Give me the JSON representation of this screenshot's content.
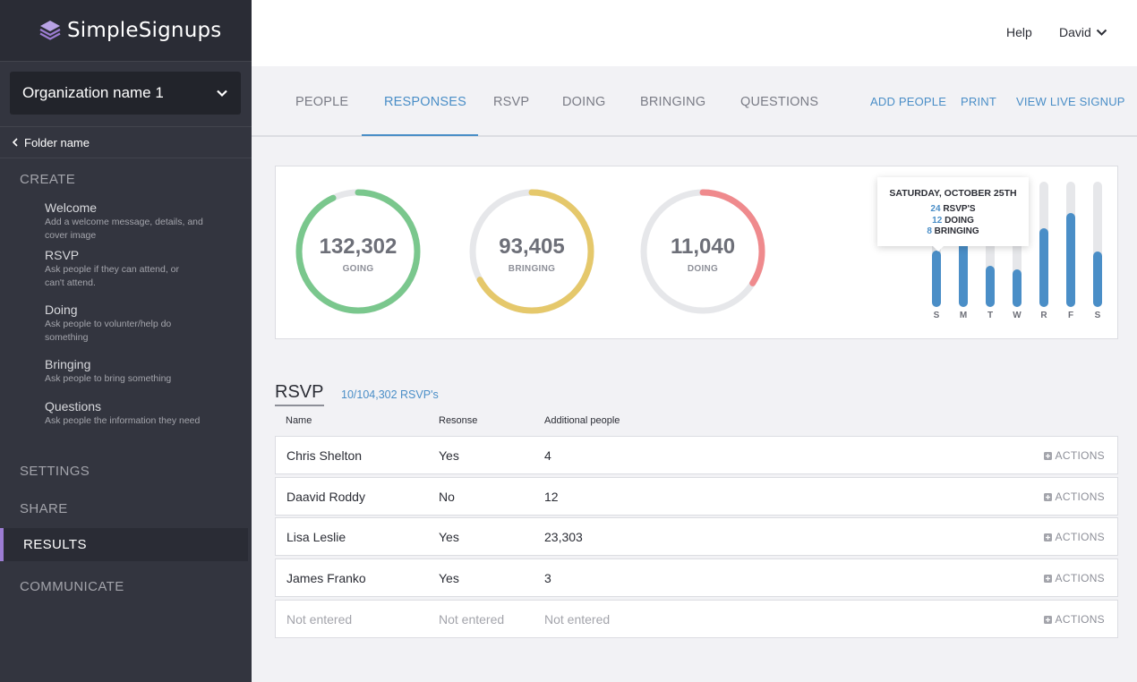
{
  "brand": {
    "name": "SimpleSignups",
    "accent": "#9c7cd3"
  },
  "sidebar": {
    "org_name": "Organization name 1",
    "folder": "Folder name",
    "create_heading": "CREATE",
    "items": [
      {
        "title": "Welcome",
        "desc": "Add a welcome message, details, and cover image"
      },
      {
        "title": "RSVP",
        "desc": "Ask people if they can attend, or can't attend."
      },
      {
        "title": "Doing",
        "desc": "Ask people to volunter/help do something"
      },
      {
        "title": "Bringing",
        "desc": "Ask people to bring something"
      },
      {
        "title": "Questions",
        "desc": "Ask people the information they need"
      }
    ],
    "settings": "SETTINGS",
    "share": "SHARE",
    "results": "RESULTS",
    "communicate": "COMMUNICATE"
  },
  "topbar": {
    "help": "Help",
    "user": "David"
  },
  "tabs": [
    "PEOPLE",
    "RESPONSES",
    "RSVP",
    "DOING",
    "BRINGING",
    "QUESTIONS"
  ],
  "active_tab": "RESPONSES",
  "tab_actions": [
    "ADD PEOPLE",
    "PRINT",
    "VIEW LIVE SIGNUP"
  ],
  "stats": [
    {
      "value": "132,302",
      "label": "GOING",
      "fraction": 0.93,
      "color": "#7ac78d"
    },
    {
      "value": "93,405",
      "label": "BRINGING",
      "fraction": 0.67,
      "color": "#e5c86b"
    },
    {
      "value": "11,040",
      "label": "DOING",
      "fraction": 0.34,
      "color": "#ef8a8d"
    }
  ],
  "chart_data": {
    "type": "bar",
    "categories": [
      "S",
      "M",
      "T",
      "W",
      "R",
      "F",
      "S"
    ],
    "values": [
      0.45,
      0.53,
      0.33,
      0.3,
      0.63,
      0.75,
      0.44
    ],
    "ylim": [
      0,
      1
    ]
  },
  "tooltip": {
    "date": "SATURDAY, OCTOBER 25TH",
    "lines": [
      {
        "num": "24",
        "label": "RSVP'S"
      },
      {
        "num": "12",
        "label": "DOING"
      },
      {
        "num": "8",
        "label": "BRINGING"
      }
    ]
  },
  "rsvp": {
    "title": "RSVP",
    "count": "10/104,302 RSVP's",
    "columns": [
      "Name",
      "Resonse",
      "Additional people"
    ],
    "actions_label": "ACTIONS",
    "rows": [
      {
        "name": "Chris Shelton",
        "response": "Yes",
        "additional": "4"
      },
      {
        "name": "Daavid Roddy",
        "response": "No",
        "additional": "12"
      },
      {
        "name": "Lisa Leslie",
        "response": "Yes",
        "additional": "23,303"
      },
      {
        "name": "James Franko",
        "response": "Yes",
        "additional": "3"
      },
      {
        "name": "Not entered",
        "response": "Not entered",
        "additional": "Not entered",
        "muted": true
      }
    ]
  }
}
